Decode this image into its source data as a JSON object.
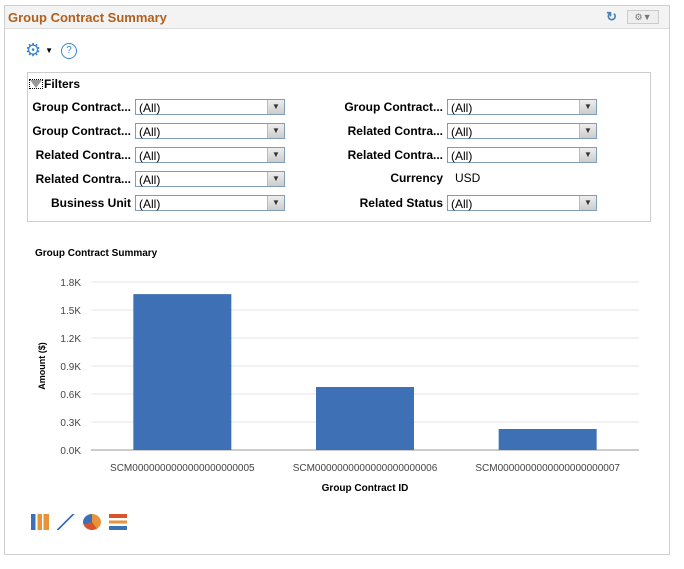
{
  "header": {
    "title": "Group Contract Summary",
    "refresh_icon": "refresh-icon",
    "options_icon": "gear-dropdown-icon"
  },
  "toolbar": {
    "settings_icon": "gear-icon",
    "help_label": "?"
  },
  "filters": {
    "title": "Filters",
    "left": [
      {
        "label": "Group Contract...",
        "value": "(All)"
      },
      {
        "label": "Group Contract...",
        "value": "(All)"
      },
      {
        "label": "Related Contra...",
        "value": "(All)"
      },
      {
        "label": "Related Contra...",
        "value": "(All)"
      },
      {
        "label": "Business Unit",
        "value": "(All)"
      }
    ],
    "right": [
      {
        "label": "Group Contract...",
        "value": "(All)"
      },
      {
        "label": "Related Contra...",
        "value": "(All)"
      },
      {
        "label": "Related Contra...",
        "value": "(All)"
      },
      {
        "label": "Currency",
        "value": "USD"
      },
      {
        "label": "Related Status",
        "value": "(All)"
      }
    ]
  },
  "chart_data": {
    "type": "bar",
    "title": "Group Contract Summary",
    "xlabel": "Group Contract ID",
    "ylabel": "Amount ($)",
    "categories": [
      "SCM0000000000000000000005",
      "SCM0000000000000000000006",
      "SCM0000000000000000000007"
    ],
    "values": [
      1670,
      675,
      225
    ],
    "ylim": [
      0,
      1800
    ],
    "yticks": [
      "0.0K",
      "0.3K",
      "0.6K",
      "0.9K",
      "1.2K",
      "1.5K",
      "1.8K"
    ],
    "grid": true,
    "color": "#3d70b5"
  },
  "chart_types": [
    "bar-chart-icon",
    "line-chart-icon",
    "pie-chart-icon",
    "horizontal-bar-chart-icon"
  ]
}
